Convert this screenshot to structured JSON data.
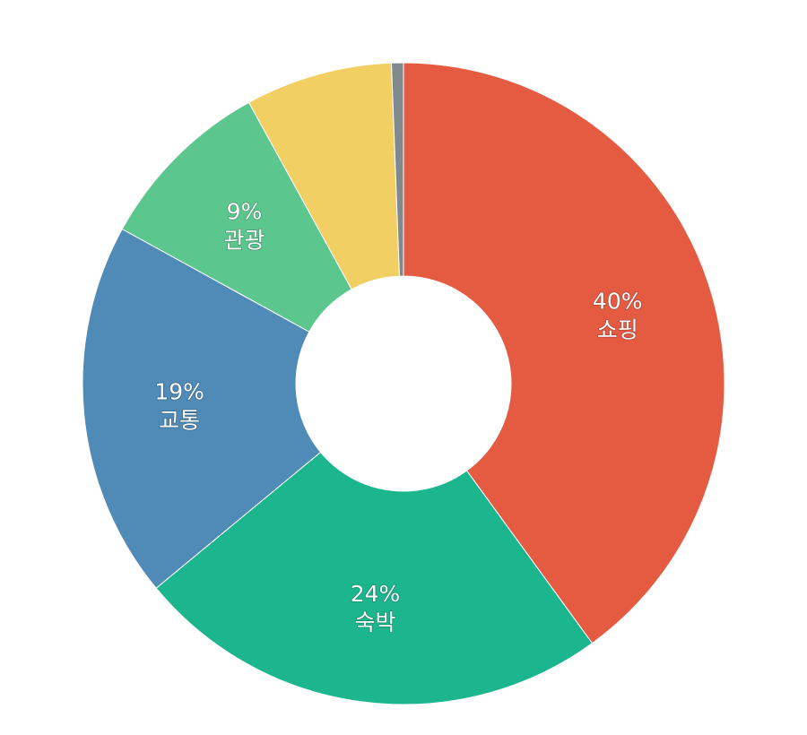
{
  "chart_data": {
    "type": "pie",
    "variant": "donut",
    "start": "top, clockwise",
    "legend": "none",
    "slices": [
      {
        "name": "쇼핑",
        "value": 40,
        "percent_label": "40%",
        "color": "#E55B42",
        "show_label": true
      },
      {
        "name": "숙박",
        "value": 24,
        "percent_label": "24%",
        "color": "#1BB68E",
        "show_label": true
      },
      {
        "name": "교통",
        "value": 19,
        "percent_label": "19%",
        "color": "#4F8BB6",
        "show_label": true
      },
      {
        "name": "관광",
        "value": 9,
        "percent_label": "9%",
        "color": "#5CC68F",
        "show_label": true
      },
      {
        "name": "",
        "value": 7.4,
        "percent_label": "",
        "color": "#F2CF62",
        "show_label": false
      },
      {
        "name": "",
        "value": 0.6,
        "percent_label": "",
        "color": "#808A8E",
        "show_label": false
      }
    ]
  }
}
